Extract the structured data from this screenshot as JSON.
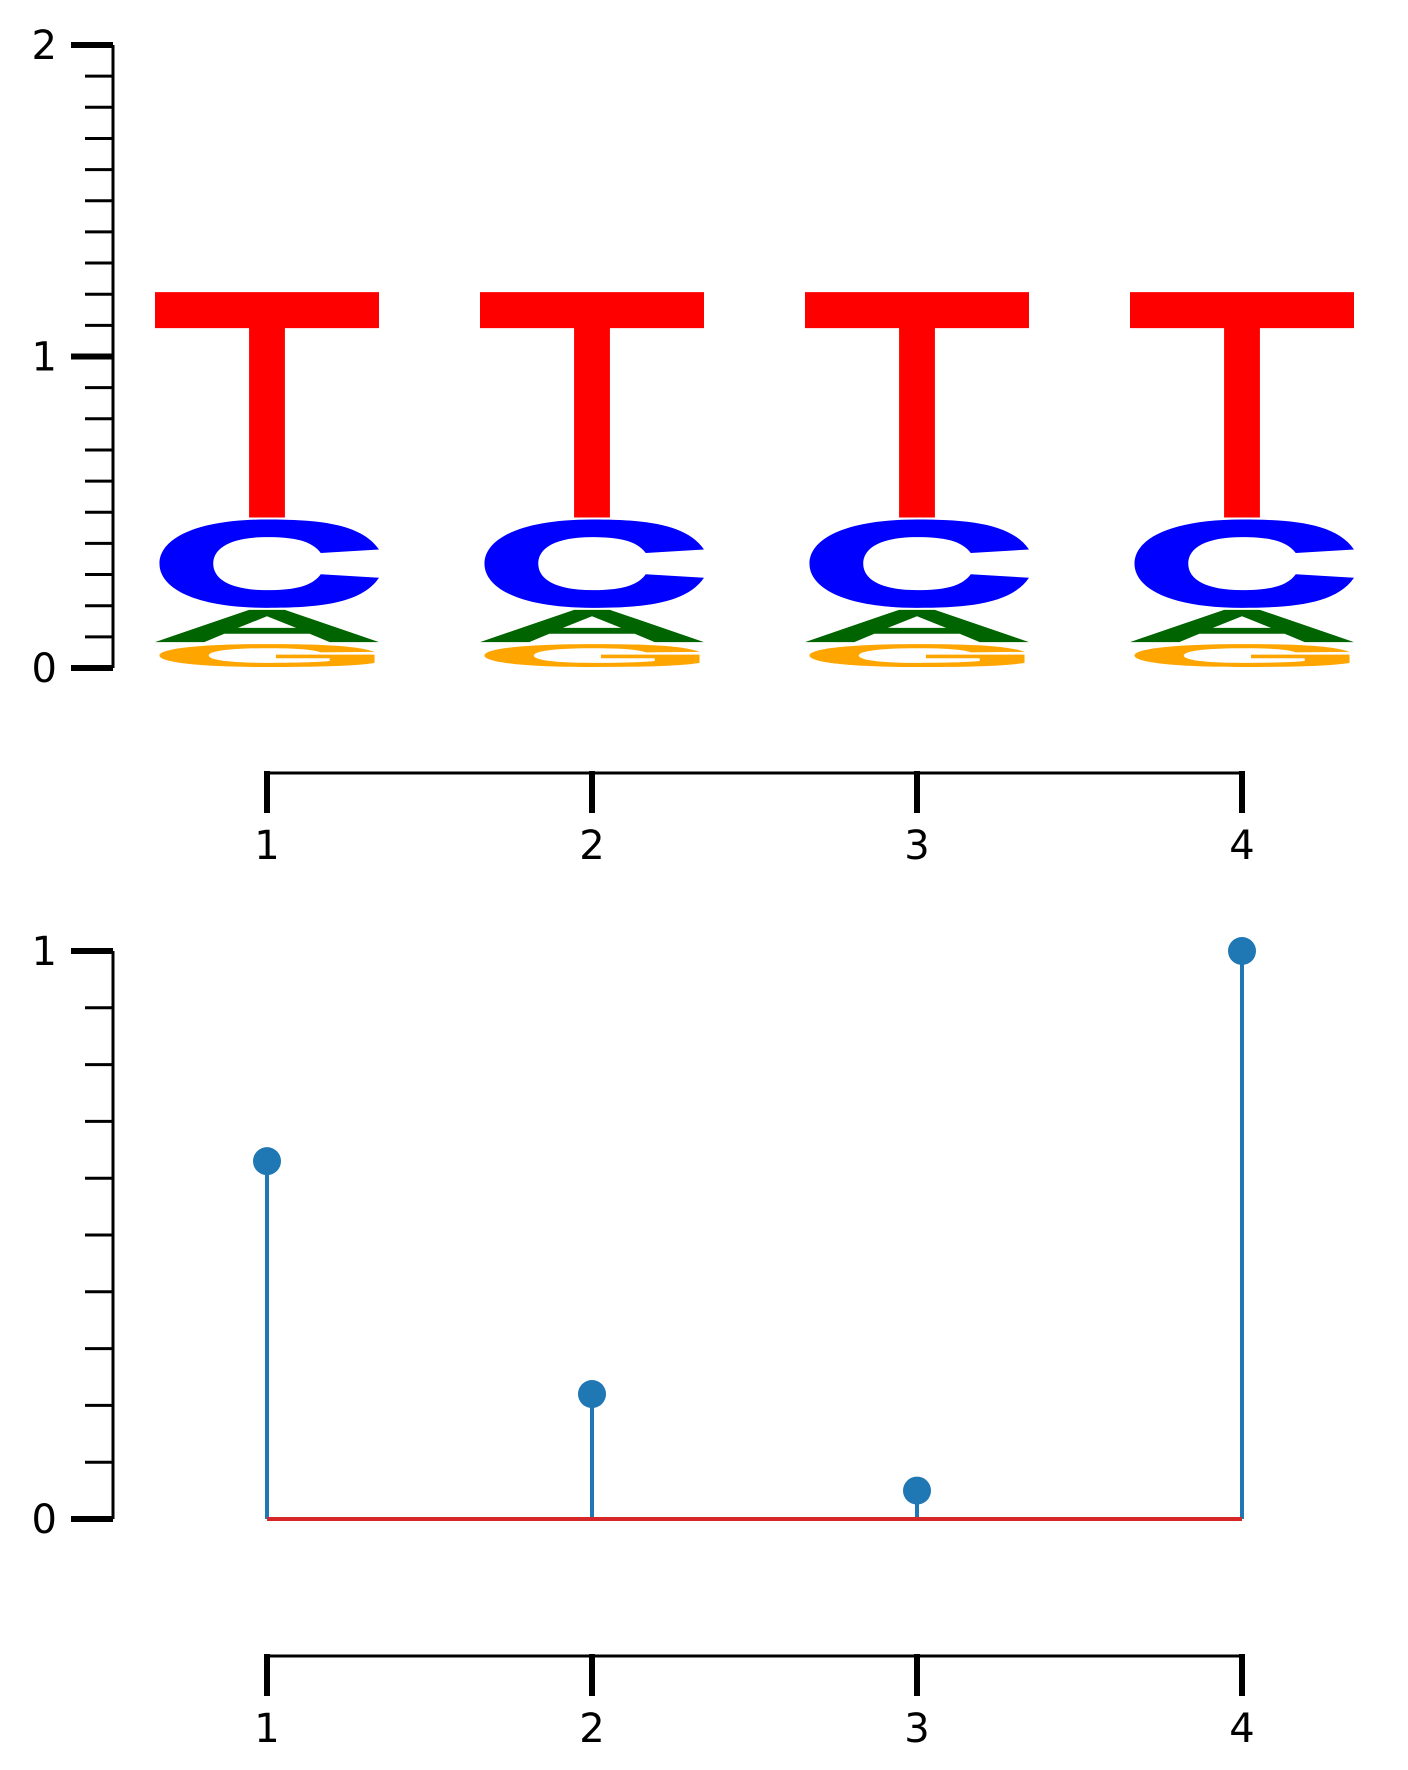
{
  "chart_data": [
    {
      "type": "sequence-logo",
      "positions": [
        1,
        2,
        3,
        4
      ],
      "x_tick_labels": [
        "1",
        "2",
        "3",
        "4"
      ],
      "ylim": [
        0,
        2
      ],
      "y_tick_labels": [
        "0",
        "1",
        "2"
      ],
      "minor_y_step": 0.1,
      "letter_colors": {
        "T": "#ff0000",
        "C": "#0000ff",
        "A": "#006400",
        "G": "#ffa500"
      },
      "series": [
        {
          "name": "G",
          "values": [
            0.08,
            0.08,
            0.08,
            0.08
          ]
        },
        {
          "name": "A",
          "values": [
            0.11,
            0.11,
            0.11,
            0.11
          ]
        },
        {
          "name": "C",
          "values": [
            0.29,
            0.29,
            0.29,
            0.29
          ]
        },
        {
          "name": "T",
          "values": [
            0.73,
            0.73,
            0.73,
            0.73
          ]
        }
      ]
    },
    {
      "type": "stem",
      "x": [
        1,
        2,
        3,
        4
      ],
      "x_tick_labels": [
        "1",
        "2",
        "3",
        "4"
      ],
      "values": [
        0.63,
        0.22,
        0.05,
        1.0
      ],
      "ylim": [
        0,
        1
      ],
      "y_tick_labels": [
        "0",
        "1"
      ],
      "minor_y_step": 0.1,
      "stem_color": "#1f77b4",
      "baseline_color": "#d62728"
    }
  ]
}
